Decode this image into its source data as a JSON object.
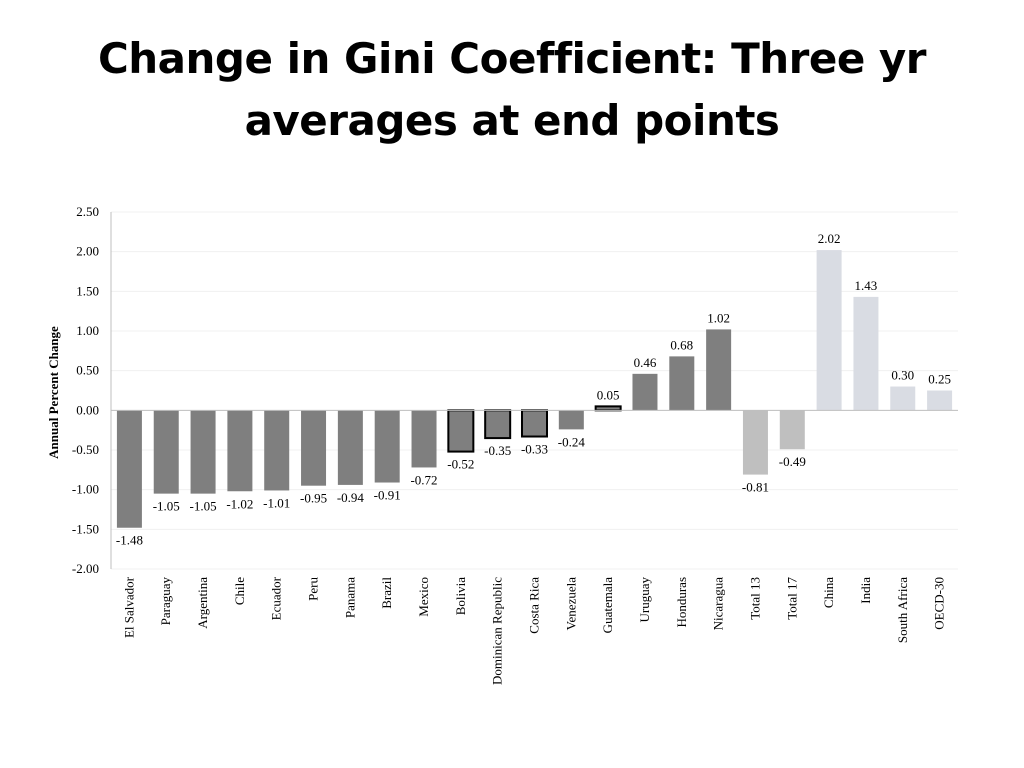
{
  "slide": {
    "title_line1": "Change in Gini Coefficient: Three yr",
    "title_line2": "averages at end points"
  },
  "chart_data": {
    "type": "bar",
    "title": "Change in Gini Coefficient: Three yr averages at end points",
    "xlabel": "",
    "ylabel": "Annual Percent Change",
    "ylim": [
      -2.0,
      2.5
    ],
    "yticks": [
      "2.50",
      "2.00",
      "1.50",
      "1.00",
      "0.50",
      "0.00",
      "-0.50",
      "-1.00",
      "-1.50",
      "-2.00"
    ],
    "ytick_values": [
      2.5,
      2.0,
      1.5,
      1.0,
      0.5,
      0.0,
      -0.5,
      -1.0,
      -1.5,
      -2.0
    ],
    "grid": true,
    "categories": [
      "El Salvador",
      "Paraguay",
      "Argentina",
      "Chile",
      "Ecuador",
      "Peru",
      "Panama",
      "Brazil",
      "Mexico",
      "Bolivia",
      "Dominican Republic",
      "Costa Rica",
      "Venezuela",
      "Guatemala",
      "Uruguay",
      "Honduras",
      "Nicaragua",
      "Total 13",
      "Total 17",
      "China",
      "India",
      "South Africa",
      "OECD-30"
    ],
    "values": [
      -1.48,
      -1.05,
      -1.05,
      -1.02,
      -1.01,
      -0.95,
      -0.94,
      -0.91,
      -0.72,
      -0.52,
      -0.35,
      -0.33,
      -0.24,
      0.05,
      0.46,
      0.68,
      1.02,
      -0.81,
      -0.49,
      2.02,
      1.43,
      0.3,
      0.25
    ],
    "labels": [
      "-1.48",
      "-1.05",
      "-1.05",
      "-1.02",
      "-1.01",
      "-0.95",
      "-0.94",
      "-0.91",
      "-0.72",
      "-0.52",
      "-0.35",
      "-0.33",
      "-0.24",
      "0.05",
      "0.46",
      "0.68",
      "1.02",
      "-0.81",
      "-0.49",
      "2.02",
      "1.43",
      "0.30",
      "0.25"
    ],
    "groups": [
      "dark",
      "dark",
      "dark",
      "dark",
      "dark",
      "dark",
      "dark",
      "dark",
      "dark",
      "outlined",
      "outlined",
      "outlined",
      "dark",
      "outlined",
      "dark",
      "dark",
      "dark",
      "medium",
      "medium",
      "light",
      "light",
      "light",
      "light"
    ],
    "colors": {
      "dark": "#7f7f7f",
      "outlined": "#7f7f7f",
      "medium": "#bfbfbf",
      "light": "#d9dce3",
      "outline": "#000000",
      "grid": "#f0f0f0",
      "axis": "#bfbfbf"
    }
  }
}
